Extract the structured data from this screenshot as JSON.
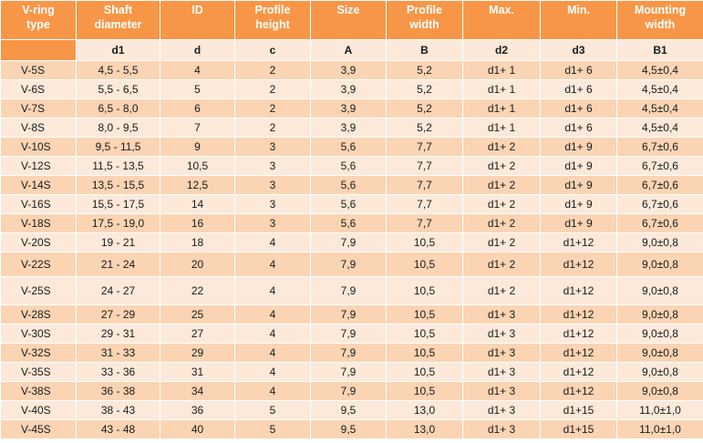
{
  "table": {
    "headers": [
      {
        "line1": "V-ring",
        "line2": "type"
      },
      {
        "line1": "Shaft",
        "line2": "diameter"
      },
      {
        "line1": "ID",
        "line2": ""
      },
      {
        "line1": "Profile",
        "line2": "height"
      },
      {
        "line1": "Size",
        "line2": ""
      },
      {
        "line1": "Profile",
        "line2": "width"
      },
      {
        "line1": "Max.",
        "line2": ""
      },
      {
        "line1": "Min.",
        "line2": ""
      },
      {
        "line1": "Mounting",
        "line2": "width"
      }
    ],
    "symbols": [
      "",
      "d1",
      "d",
      "c",
      "A",
      "B",
      "d2",
      "d3",
      "B1"
    ],
    "rows": [
      [
        "V-5S",
        "4,5 - 5,5",
        "4",
        "2",
        "3,9",
        "5,2",
        "d1+ 1",
        "d1+ 6",
        "4,5±0,4"
      ],
      [
        "V-6S",
        "5,5 - 6,5",
        "5",
        "2",
        "3,9",
        "5,2",
        "d1+ 1",
        "d1+ 6",
        "4,5±0,4"
      ],
      [
        "V-7S",
        "6,5 - 8,0",
        "6",
        "2",
        "3,9",
        "5,2",
        "d1+ 1",
        "d1+ 6",
        "4,5±0,4"
      ],
      [
        "V-8S",
        "8,0 - 9,5",
        "7",
        "2",
        "3,9",
        "5,2",
        "d1+ 1",
        "d1+ 6",
        "4,5±0,4"
      ],
      [
        "V-10S",
        "9,5 - 11,5",
        "9",
        "3",
        "5,6",
        "7,7",
        "d1+ 2",
        "d1+ 9",
        "6,7±0,6"
      ],
      [
        "V-12S",
        "11,5 - 13,5",
        "10,5",
        "3",
        "5,6",
        "7,7",
        "d1+ 2",
        "d1+ 9",
        "6,7±0,6"
      ],
      [
        "V-14S",
        "13,5 - 15,5",
        "12,5",
        "3",
        "5,6",
        "7,7",
        "d1+ 2",
        "d1+ 9",
        "6,7±0,6"
      ],
      [
        "V-16S",
        "15,5 - 17,5",
        "14",
        "3",
        "5,6",
        "7,7",
        "d1+ 2",
        "d1+ 9",
        "6,7±0,6"
      ],
      [
        "V-18S",
        "17,5 - 19,0",
        "16",
        "3",
        "5,6",
        "7,7",
        "d1+ 2",
        "d1+ 9",
        "6,7±0,6"
      ],
      [
        "V-20S",
        "19 - 21",
        "18",
        "4",
        "7,9",
        "10,5",
        "d1+ 2",
        "d1+12",
        "9,0±0,8"
      ],
      [
        "V-22S",
        "21 - 24",
        "20",
        "4",
        "7,9",
        "10,5",
        "d1+ 2",
        "d1+12",
        "9,0±0,8"
      ],
      [
        "V-25S",
        "24 - 27",
        "22",
        "4",
        "7,9",
        "10,5",
        "d1+ 2",
        "d1+12",
        "9,0±0,8"
      ],
      [
        "V-28S",
        "27 - 29",
        "25",
        "4",
        "7,9",
        "10,5",
        "d1+ 3",
        "d1+12",
        "9,0±0,8"
      ],
      [
        "V-30S",
        "29 - 31",
        "27",
        "4",
        "7,9",
        "10,5",
        "d1+ 3",
        "d1+12",
        "9,0±0,8"
      ],
      [
        "V-32S",
        "31 - 33",
        "29",
        "4",
        "7,9",
        "10,5",
        "d1+ 3",
        "d1+12",
        "9,0±0,8"
      ],
      [
        "V-35S",
        "33 - 36",
        "31",
        "4",
        "7,9",
        "10,5",
        "d1+ 3",
        "d1+12",
        "9,0±0,8"
      ],
      [
        "V-38S",
        "36 - 38",
        "34",
        "4",
        "7,9",
        "10,5",
        "d1+ 3",
        "d1+12",
        "9,0±0,8"
      ],
      [
        "V-40S",
        "38 - 43",
        "36",
        "5",
        "9,5",
        "13,0",
        "d1+ 3",
        "d1+15",
        "11,0±1,0"
      ],
      [
        "V-45S",
        "43 - 48",
        "40",
        "5",
        "9,5",
        "13,0",
        "d1+ 3",
        "d1+15",
        "11,0±1,0"
      ]
    ]
  },
  "colors": {
    "header_orange": "#f79646",
    "row_light": "#fde9d9",
    "row_medium": "#fbd4b4",
    "header_text": "#ffffff"
  }
}
